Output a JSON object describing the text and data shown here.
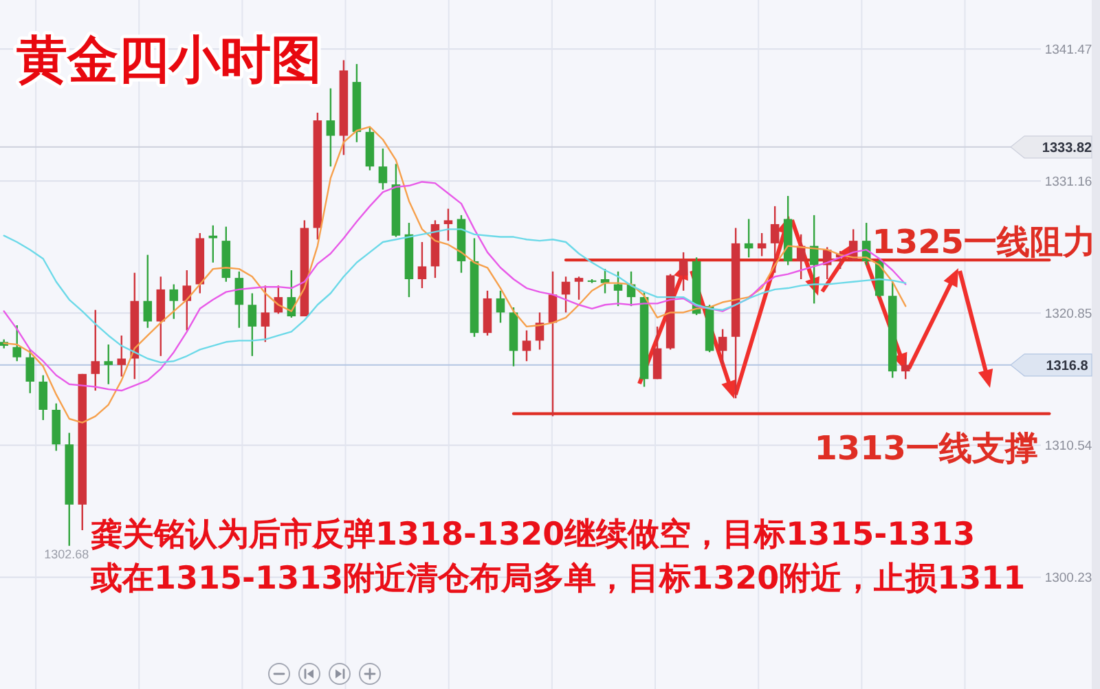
{
  "chart_data": {
    "type": "candlestick",
    "title": "黄金四小时图",
    "annotations": [
      "龚关铭认为后市反弹1318-1320继续做空，目标1315-1313",
      "或在1315-1313附近清仓布局多单，目标1320附近，止损1311",
      {
        "text": "1302.68",
        "y": 1302.68
      }
    ],
    "categories": [
      null,
      null,
      null,
      null,
      null,
      null,
      null,
      null,
      null,
      null,
      null,
      null,
      null,
      null,
      null,
      null,
      null,
      null,
      null,
      null,
      null,
      null,
      null,
      null,
      null,
      null,
      null,
      null,
      null,
      null,
      null,
      null,
      null,
      null,
      null,
      null,
      null,
      null,
      null,
      null,
      null,
      null,
      null,
      null,
      null,
      null,
      null,
      null,
      null,
      null,
      null,
      null,
      null,
      null,
      null,
      null,
      null,
      null,
      null,
      null,
      null,
      null,
      null,
      null,
      null,
      null,
      null,
      null,
      null,
      null,
      null,
      null,
      null,
      null,
      null,
      null,
      null,
      null,
      null,
      null,
      null
    ],
    "ohlc": [
      [
        1318.6,
        1318.8,
        1318.1,
        1318.3
      ],
      [
        1318.2,
        1319.9,
        1317.1,
        1317.4
      ],
      [
        1317.4,
        1318.0,
        1314.6,
        1315.5
      ],
      [
        1315.5,
        1316.0,
        1312.5,
        1313.3
      ],
      [
        1313.3,
        1313.8,
        1310.1,
        1310.6
      ],
      [
        1310.6,
        1311.5,
        1302.68,
        1305.9
      ],
      [
        1305.9,
        1316.1,
        1303.9,
        1316.1
      ],
      [
        1316.1,
        1321.1,
        1314.8,
        1317.1
      ],
      [
        1317.1,
        1318.4,
        1315.3,
        1316.8
      ],
      [
        1316.8,
        1319.1,
        1315.9,
        1317.3
      ],
      [
        1317.3,
        1324.0,
        1315.7,
        1321.8
      ],
      [
        1321.8,
        1325.4,
        1319.7,
        1320.2
      ],
      [
        1320.2,
        1323.7,
        1317.5,
        1322.7
      ],
      [
        1322.7,
        1323.1,
        1320.4,
        1321.8
      ],
      [
        1321.8,
        1324.2,
        1319.5,
        1323.0
      ],
      [
        1323.1,
        1327.1,
        1322.4,
        1326.7
      ],
      [
        1326.9,
        1327.7,
        1324.8,
        1326.7
      ],
      [
        1326.5,
        1327.6,
        1323.3,
        1323.6
      ],
      [
        1323.6,
        1324.1,
        1319.7,
        1321.5
      ],
      [
        1321.5,
        1322.4,
        1317.5,
        1319.8
      ],
      [
        1319.8,
        1323.0,
        1318.6,
        1320.9
      ],
      [
        1320.9,
        1323.0,
        1320.8,
        1322.1
      ],
      [
        1322.1,
        1324.2,
        1320.5,
        1320.6
      ],
      [
        1320.6,
        1328.1,
        1320.6,
        1327.5
      ],
      [
        1327.5,
        1336.5,
        1326.6,
        1335.9
      ],
      [
        1335.9,
        1338.4,
        1332.3,
        1334.7
      ],
      [
        1334.7,
        1340.6,
        1333.2,
        1339.8
      ],
      [
        1338.9,
        1340.3,
        1334.2,
        1335.0
      ],
      [
        1335.0,
        1335.4,
        1332.0,
        1332.3
      ],
      [
        1332.3,
        1333.7,
        1330.5,
        1331.0
      ],
      [
        1330.9,
        1332.5,
        1326.8,
        1326.9
      ],
      [
        1327.0,
        1327.9,
        1322.1,
        1323.5
      ],
      [
        1323.5,
        1326.4,
        1322.8,
        1324.5
      ],
      [
        1324.5,
        1328.1,
        1323.6,
        1327.8
      ],
      [
        1327.8,
        1329.0,
        1326.5,
        1328.1
      ],
      [
        1328.2,
        1328.5,
        1324.0,
        1324.9
      ],
      [
        1324.9,
        1326.7,
        1319.0,
        1319.3
      ],
      [
        1319.3,
        1322.6,
        1319.1,
        1322.0
      ],
      [
        1322.0,
        1322.6,
        1320.1,
        1320.9
      ],
      [
        1320.9,
        1321.3,
        1316.7,
        1317.9
      ],
      [
        1317.9,
        1319.5,
        1317.1,
        1318.7
      ],
      [
        1318.7,
        1320.9,
        1318.0,
        1320.1
      ],
      [
        1320.1,
        1324.1,
        1312.8,
        1322.3
      ],
      [
        1322.3,
        1323.7,
        1320.9,
        1323.3
      ],
      [
        1323.3,
        1323.7,
        1321.9,
        1323.6
      ],
      [
        1323.4,
        1323.5,
        1323.2,
        1323.3
      ],
      [
        1323.5,
        1324.3,
        1322.4,
        1323.2
      ],
      [
        1323.1,
        1324.1,
        1321.4,
        1322.6
      ],
      [
        1323.1,
        1324.1,
        1321.4,
        1322.1
      ],
      [
        1322.1,
        1322.5,
        1315.1,
        1315.7
      ],
      [
        1315.7,
        1319.8,
        1315.7,
        1318.1
      ],
      [
        1318.1,
        1323.9,
        1318.0,
        1323.8
      ],
      [
        1323.8,
        1325.6,
        1322.6,
        1325.0
      ],
      [
        1324.9,
        1325.2,
        1320.7,
        1320.8
      ],
      [
        1321.4,
        1321.5,
        1317.8,
        1317.9
      ],
      [
        1317.9,
        1319.6,
        1316.7,
        1319.0
      ],
      [
        1319.0,
        1327.5,
        1314.2,
        1326.3
      ],
      [
        1326.3,
        1328.2,
        1325.2,
        1325.9
      ],
      [
        1325.9,
        1327.1,
        1325.3,
        1326.3
      ],
      [
        1326.3,
        1329.2,
        1324.0,
        1327.8
      ],
      [
        1328.2,
        1330.0,
        1324.6,
        1324.9
      ],
      [
        1324.9,
        1327.0,
        1323.5,
        1326.1
      ],
      [
        1326.1,
        1328.5,
        1321.6,
        1324.6
      ],
      [
        1324.6,
        1326.0,
        1323.5,
        1325.8
      ],
      [
        1325.2,
        1325.7,
        1324.3,
        1325.5
      ],
      [
        1325.0,
        1327.4,
        1324.9,
        1326.5
      ],
      [
        1326.5,
        1327.9,
        1324.6,
        1324.9
      ],
      [
        1324.9,
        1325.1,
        1322.1,
        1322.2
      ],
      [
        1322.2,
        1323.3,
        1315.8,
        1316.3
      ],
      [
        1316.3,
        1317.4,
        1315.7,
        1316.8
      ],
      null,
      null,
      null,
      null,
      null,
      null,
      null,
      null,
      null,
      null,
      null
    ],
    "colors": [
      "#32a53e",
      "#32a53e",
      "#32a53e",
      "#32a53e",
      "#32a53e",
      "#32a53e",
      "#d0333b",
      "#d0333b",
      "#32a53e",
      "#d0333b",
      "#d0333b",
      "#32a53e",
      "#d0333b",
      "#32a53e",
      "#d0333b",
      "#d0333b",
      "#32a53e",
      "#32a53e",
      "#32a53e",
      "#32a53e",
      "#d0333b",
      "#d0333b",
      "#32a53e",
      "#d0333b",
      "#d0333b",
      "#32a53e",
      "#d0333b",
      "#32a53e",
      "#32a53e",
      "#32a53e",
      "#32a53e",
      "#32a53e",
      "#d0333b",
      "#d0333b",
      "#d0333b",
      "#32a53e",
      "#32a53e",
      "#d0333b",
      "#32a53e",
      "#32a53e",
      "#d0333b",
      "#d0333b",
      "#d0333b",
      "#d0333b",
      "#d0333b",
      "#32a53e",
      "#32a53e",
      "#32a53e",
      "#32a53e",
      "#32a53e",
      "#d0333b",
      "#d0333b",
      "#d0333b",
      "#32a53e",
      "#32a53e",
      "#d0333b",
      "#d0333b",
      "#32a53e",
      "#d0333b",
      "#d0333b",
      "#32a53e",
      "#d0333b",
      "#32a53e",
      "#d0333b",
      "#d0333b",
      "#d0333b",
      "#32a53e",
      "#32a53e",
      "#32a53e",
      "#d0333b",
      null,
      null,
      null,
      null,
      null,
      null,
      null,
      null,
      null,
      null,
      null
    ],
    "series": [
      {
        "type": "line",
        "color": "#f6a04c",
        "values": [
          1318.5,
          1318.4,
          1317.8,
          1316.7,
          1314.5,
          1312.6,
          1312.3,
          1312.8,
          1313.7,
          1315.6,
          1318.1,
          1319.1,
          1320.1,
          1321.0,
          1321.9,
          1323.1,
          1324.3,
          1324.4,
          1324.3,
          1323.7,
          1322.4,
          1321.5,
          1321.0,
          1322.8,
          1326.1,
          1331.4,
          1334.2,
          1335.1,
          1335.4,
          1334.4,
          1332.8,
          1329.6,
          1327.4,
          1326.5,
          1326.2,
          1325.6,
          1324.8,
          1324.4,
          1322.8,
          1321.0,
          1319.8,
          1319.9,
          1320.1,
          1320.5,
          1321.5,
          1322.6,
          1323.2,
          1323.2,
          1323.1,
          1322.2,
          1320.5,
          1320.9,
          1320.9,
          1321.2,
          1321.3,
          1321.7,
          1321.9,
          1322.1,
          1322.8,
          1324.6,
          1326.1,
          1326.0,
          1325.9,
          1325.8,
          1325.4,
          1325.2,
          1325.2,
          1324.6,
          1323.3,
          1321.4,
          null,
          null,
          null,
          null,
          null,
          null,
          null,
          null,
          null,
          null,
          null
        ]
      },
      {
        "type": "line",
        "color": "#e85ae8",
        "values": [
          1321.0,
          1319.6,
          1318.0,
          1317.1,
          1316.0,
          1315.3,
          1315.2,
          1315.1,
          1314.9,
          1314.8,
          1315.2,
          1315.6,
          1316.5,
          1317.8,
          1319.4,
          1321.2,
          1321.9,
          1322.5,
          1322.7,
          1322.8,
          1322.9,
          1322.9,
          1322.8,
          1323.3,
          1324.7,
          1325.5,
          1326.7,
          1328.0,
          1329.2,
          1330.3,
          1330.7,
          1330.8,
          1331.1,
          1331.0,
          1330.2,
          1329.4,
          1327.4,
          1325.6,
          1324.4,
          1323.5,
          1322.8,
          1322.5,
          1322.3,
          1321.9,
          1321.5,
          1321.2,
          1321.5,
          1321.6,
          1321.5,
          1321.6,
          1321.6,
          1321.9,
          1322.0,
          1321.4,
          1321.2,
          1321.0,
          1321.5,
          1322.0,
          1323.0,
          1323.7,
          1323.9,
          1324.2,
          1324.5,
          1324.8,
          1325.2,
          1325.6,
          1325.8,
          1325.1,
          1324.2,
          1323.1,
          null,
          null,
          null,
          null,
          null,
          null,
          null,
          null,
          null,
          null,
          null
        ]
      },
      {
        "type": "line",
        "color": "#6cd9e8",
        "values": [
          1326.9,
          1326.4,
          1325.8,
          1325.1,
          1323.3,
          1321.9,
          1321.0,
          1320.0,
          1319.1,
          1318.3,
          1317.8,
          1317.3,
          1317.0,
          1317.1,
          1317.5,
          1318.0,
          1318.3,
          1318.6,
          1318.7,
          1318.7,
          1318.8,
          1319.1,
          1319.4,
          1320.3,
          1321.5,
          1322.4,
          1323.7,
          1324.8,
          1325.6,
          1326.4,
          1326.6,
          1326.8,
          1327.0,
          1327.2,
          1327.4,
          1327.4,
          1327.0,
          1326.9,
          1326.8,
          1326.8,
          1326.6,
          1326.5,
          1326.6,
          1326.4,
          1325.5,
          1324.8,
          1324.2,
          1323.7,
          1323.0,
          1322.5,
          1322.1,
          1322.1,
          1322.1,
          1321.5,
          1321.2,
          1321.1,
          1321.5,
          1322.0,
          1322.4,
          1322.7,
          1322.8,
          1323.0,
          1323.1,
          1323.1,
          1323.2,
          1323.3,
          1323.4,
          1323.5,
          1323.4,
          1323.2,
          null,
          null,
          null,
          null,
          null,
          null,
          null,
          null,
          null,
          null,
          null
        ]
      },
      {
        "type": "line",
        "name": "1325一线阻力",
        "color": "#df2e24",
        "values": [
          null,
          null,
          null,
          null,
          null,
          null,
          null,
          null,
          null,
          null,
          null,
          null,
          null,
          null,
          null,
          null,
          null,
          null,
          null,
          null,
          null,
          null,
          null,
          null,
          null,
          null,
          null,
          null,
          null,
          null,
          null,
          null,
          null,
          null,
          null,
          null,
          null,
          null,
          null,
          null,
          null,
          null,
          null,
          1325,
          1325,
          1325,
          1325,
          1325,
          1325,
          1325,
          1325,
          1325,
          1325,
          1325,
          1325,
          1325,
          1325,
          1325,
          1325,
          1325,
          1325,
          1325,
          1325,
          1325,
          1325,
          1325,
          1325,
          1325,
          1325,
          1325,
          1325,
          1325,
          1325,
          1325,
          1325,
          1325,
          1325,
          1325,
          1325,
          1325,
          1325
        ]
      },
      {
        "type": "line",
        "name": "1313一线支撑",
        "color": "#df2e24",
        "values": [
          null,
          null,
          null,
          null,
          null,
          null,
          null,
          null,
          null,
          null,
          null,
          null,
          null,
          null,
          null,
          null,
          null,
          null,
          null,
          null,
          null,
          null,
          null,
          null,
          null,
          null,
          null,
          null,
          null,
          null,
          null,
          null,
          null,
          null,
          null,
          null,
          null,
          null,
          null,
          1313,
          1313,
          1313,
          1313,
          1313,
          1313,
          1313,
          1313,
          1313,
          1313,
          1313,
          1313,
          1313,
          1313,
          1313,
          1313,
          1313,
          1313,
          1313,
          1313,
          1313,
          1313,
          1313,
          1313,
          1313,
          1313,
          1313,
          1313,
          1313,
          1313,
          1313,
          1313,
          1313,
          1313,
          1313,
          1313,
          1313,
          1313,
          1313,
          1313,
          1313,
          1313
        ]
      }
    ],
    "ylim": [
      1291.5,
      1345.3
    ],
    "yticks": [
      1300.23,
      1310.54,
      1320.85,
      1331.16,
      1341.47
    ],
    "ref_lines": [
      {
        "axis": "y",
        "value": 1333.82,
        "label": "1333.82",
        "color": "#cdd0dc"
      },
      {
        "axis": "y",
        "value": 1316.8,
        "label": "1316.8",
        "color": "#b3c5e2"
      }
    ],
    "grid": true,
    "tick_labels": "y"
  }
}
